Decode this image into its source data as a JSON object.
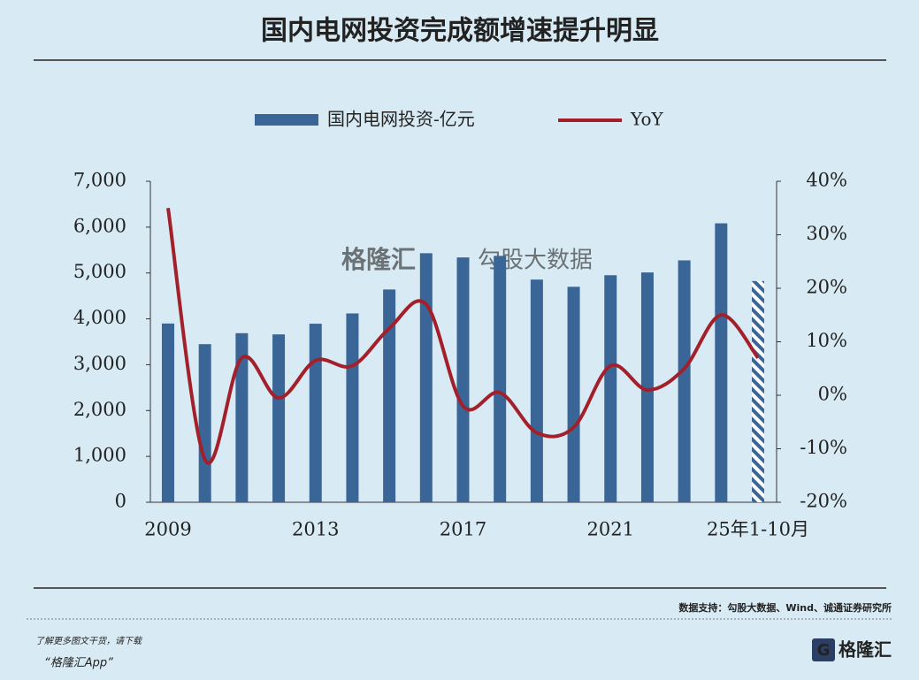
{
  "header": {
    "title": "国内电网投资完成额增速提升明显"
  },
  "chart_data": {
    "type": "bar-line",
    "categories": [
      "2009",
      null,
      null,
      null,
      "2013",
      null,
      null,
      null,
      "2017",
      null,
      null,
      null,
      "2021",
      null,
      null,
      null,
      "25年1-10月"
    ],
    "series": [
      {
        "name": "国内电网投资-亿元",
        "color": "#3a6597",
        "values": [
          3898,
          3448,
          3687,
          3661,
          3894,
          4118,
          4640,
          5431,
          5339,
          5373,
          4856,
          4699,
          4951,
          5012,
          5275,
          6083,
          4824
        ]
      },
      {
        "name": "YoY",
        "color": "#a3202b",
        "axis": "y2",
        "values": [
          35,
          -12,
          7,
          -0.5,
          6.5,
          5.5,
          12.5,
          17,
          -2,
          0.5,
          -7,
          -6,
          5.5,
          1,
          5,
          15,
          7
        ]
      }
    ],
    "ylim": [
      0,
      7000
    ],
    "yticks": [
      0,
      {
        "value": 1000,
        "label": "1,000"
      },
      {
        "value": 2000,
        "label": "2,000"
      },
      {
        "value": 3000,
        "label": "3,000"
      },
      {
        "value": 4000,
        "label": "4,000"
      },
      {
        "value": 5000,
        "label": "5,000"
      },
      {
        "value": 6000,
        "label": "6,000"
      },
      {
        "value": 7000,
        "label": "7,000"
      }
    ],
    "y2lim": [
      -20,
      40
    ],
    "y2ticks": [
      {
        "value": -20,
        "label": "-20%"
      },
      {
        "value": -10,
        "label": "-10%"
      },
      {
        "value": 0,
        "label": "0%"
      },
      {
        "value": 10,
        "label": "10%"
      },
      {
        "value": 20,
        "label": "20%"
      },
      {
        "value": 30,
        "label": "30%"
      },
      {
        "value": 40,
        "label": "40%"
      }
    ],
    "last_bar_hatched": true,
    "legend": "top"
  },
  "watermark": {
    "brand": "格隆汇",
    "product": "勾股大数据"
  },
  "source": "数据支持：勾股大数据、Wind、诚通证券研究所",
  "footer": {
    "line1": "了解更多图文干货，请下载",
    "line2": "“格隆汇App”",
    "logo": "格隆汇"
  }
}
